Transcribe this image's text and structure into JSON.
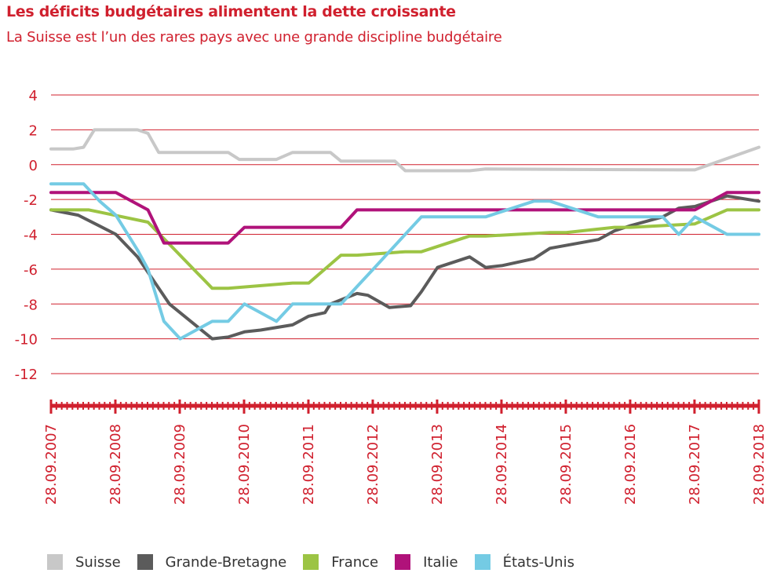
{
  "header": {
    "title": "Les déficits budgétaires alimentent la dette croissante",
    "subtitle": "La Suisse est l’un des rares pays avec une grande discipline budgétaire"
  },
  "colors": {
    "axis": "#d0202e",
    "grid": "#d0202e"
  },
  "chart_data": {
    "type": "line",
    "title": "Les déficits budgétaires alimentent la dette croissante",
    "subtitle": "La Suisse est l’un des rares pays avec une grande discipline budgétaire",
    "xlabel": "",
    "ylabel": "",
    "ylim": [
      -12,
      4
    ],
    "yticks": [
      4,
      2,
      0,
      -2,
      -4,
      -6,
      -8,
      -10,
      -12
    ],
    "x_range": [
      "28.09.2007",
      "28.09.2018"
    ],
    "xticks": [
      "28.09.2007",
      "28.09.2008",
      "28.09.2009",
      "28.09.2010",
      "28.09.2011",
      "28.09.2012",
      "28.09.2013",
      "28.09.2014",
      "28.09.2015",
      "28.09.2016",
      "28.09.2017",
      "28.09.2018"
    ],
    "grid": "horizontal",
    "legend_position": "bottom",
    "series": [
      {
        "name": "Suisse",
        "color": "#c8c8c8",
        "x": [
          "2007-09-28",
          "2008-01-31",
          "2008-03-31",
          "2008-05-31",
          "2009-01-31",
          "2009-03-31",
          "2009-05-31",
          "2010-06-30",
          "2010-08-31",
          "2011-03-31",
          "2011-06-30",
          "2012-01-31",
          "2012-03-31",
          "2013-01-31",
          "2013-03-31",
          "2014-03-31",
          "2014-06-30",
          "2017-06-30",
          "2017-09-30",
          "2018-09-28"
        ],
        "values": [
          0.9,
          0.9,
          1.0,
          2.0,
          2.0,
          1.8,
          0.7,
          0.7,
          0.3,
          0.3,
          0.7,
          0.7,
          0.2,
          0.2,
          -0.35,
          -0.35,
          -0.25,
          -0.3,
          -0.3,
          1.0
        ]
      },
      {
        "name": "Grande-Bretagne",
        "color": "#5b5b5b",
        "x": [
          "2007-09-28",
          "2008-02-29",
          "2008-09-30",
          "2009-01-31",
          "2009-07-31",
          "2010-03-31",
          "2010-06-30",
          "2010-09-30",
          "2010-12-31",
          "2011-06-30",
          "2011-09-30",
          "2011-12-31",
          "2012-01-31",
          "2012-06-30",
          "2012-08-31",
          "2012-12-31",
          "2013-04-30",
          "2013-06-30",
          "2013-09-30",
          "2014-03-31",
          "2014-06-30",
          "2014-09-30",
          "2015-03-31",
          "2015-06-30",
          "2016-03-31",
          "2016-06-30",
          "2016-09-30",
          "2017-03-31",
          "2017-06-30",
          "2017-09-30",
          "2018-03-31",
          "2018-09-28"
        ],
        "values": [
          -2.6,
          -2.9,
          -4.0,
          -5.3,
          -8.0,
          -10.0,
          -9.9,
          -9.6,
          -9.5,
          -9.2,
          -8.7,
          -8.5,
          -8.0,
          -7.4,
          -7.5,
          -8.2,
          -8.1,
          -7.3,
          -5.9,
          -5.3,
          -5.9,
          -5.8,
          -5.4,
          -4.8,
          -4.3,
          -3.8,
          -3.5,
          -3.0,
          -2.5,
          -2.4,
          -1.8,
          -2.1
        ]
      },
      {
        "name": "France",
        "color": "#9cc444",
        "x": [
          "2007-09-28",
          "2008-04-30",
          "2009-03-31",
          "2010-03-31",
          "2010-06-30",
          "2011-06-30",
          "2011-09-30",
          "2012-03-31",
          "2012-06-30",
          "2013-03-31",
          "2013-06-30",
          "2014-03-31",
          "2014-06-30",
          "2015-06-30",
          "2015-09-30",
          "2016-06-30",
          "2016-09-30",
          "2017-09-30",
          "2018-03-31",
          "2018-09-28"
        ],
        "values": [
          -2.6,
          -2.6,
          -3.3,
          -7.1,
          -7.1,
          -6.8,
          -6.8,
          -5.2,
          -5.2,
          -5.0,
          -5.0,
          -4.1,
          -4.1,
          -3.9,
          -3.9,
          -3.6,
          -3.6,
          -3.4,
          -2.6,
          -2.6
        ]
      },
      {
        "name": "Italie",
        "color": "#b0127a",
        "x": [
          "2007-09-28",
          "2008-09-30",
          "2009-03-31",
          "2009-06-30",
          "2010-03-31",
          "2010-06-30",
          "2010-09-30",
          "2012-03-31",
          "2012-06-30",
          "2017-06-30",
          "2017-09-30",
          "2018-03-31",
          "2018-09-28"
        ],
        "values": [
          -1.6,
          -1.6,
          -2.6,
          -4.5,
          -4.5,
          -4.5,
          -3.6,
          -3.6,
          -2.6,
          -2.6,
          -2.6,
          -1.6,
          -1.6
        ]
      },
      {
        "name": "États-Unis",
        "color": "#74cbe4",
        "x": [
          "2007-09-28",
          "2008-03-31",
          "2008-06-30",
          "2008-09-30",
          "2009-01-31",
          "2009-03-31",
          "2009-06-30",
          "2009-09-30",
          "2010-03-31",
          "2010-06-30",
          "2010-09-30",
          "2011-03-31",
          "2011-06-30",
          "2011-09-30",
          "2012-03-31",
          "2012-06-30",
          "2012-09-30",
          "2013-03-31",
          "2013-06-30",
          "2013-09-30",
          "2014-03-31",
          "2014-06-30",
          "2015-03-31",
          "2015-06-30",
          "2016-03-31",
          "2016-06-30",
          "2016-09-30",
          "2017-03-31",
          "2017-06-30",
          "2017-09-30",
          "2018-03-31",
          "2018-09-28"
        ],
        "values": [
          -1.1,
          -1.1,
          -2.1,
          -2.9,
          -4.9,
          -6.0,
          -9.0,
          -10.0,
          -9.0,
          -9.0,
          -8.0,
          -9.0,
          -8.0,
          -8.0,
          -8.0,
          -7.0,
          -6.0,
          -4.0,
          -3.0,
          -3.0,
          -3.0,
          -3.0,
          -2.1,
          -2.1,
          -3.0,
          -3.0,
          -3.0,
          -3.0,
          -4.0,
          -3.0,
          -4.0,
          -4.0
        ]
      }
    ]
  }
}
